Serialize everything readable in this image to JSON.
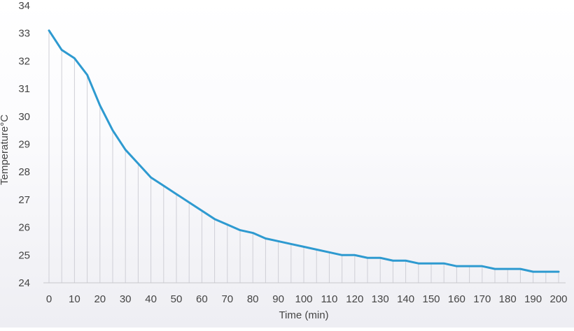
{
  "chart_data": {
    "type": "line",
    "title": "",
    "xlabel": "Time (min)",
    "ylabel": "Temperature°C",
    "xlim": [
      0,
      200
    ],
    "ylim": [
      24,
      34
    ],
    "x_ticks": [
      0,
      10,
      20,
      30,
      40,
      50,
      60,
      70,
      80,
      90,
      100,
      110,
      120,
      130,
      140,
      150,
      160,
      170,
      180,
      190,
      200
    ],
    "y_ticks": [
      24,
      25,
      26,
      27,
      28,
      29,
      30,
      31,
      32,
      33,
      34
    ],
    "drop_lines": true,
    "grid": false,
    "legend": "none",
    "series": [
      {
        "color": "#2e9ad0",
        "x": [
          0,
          5,
          10,
          15,
          20,
          25,
          30,
          35,
          40,
          45,
          50,
          55,
          60,
          65,
          70,
          75,
          80,
          85,
          90,
          95,
          100,
          105,
          110,
          115,
          120,
          125,
          130,
          135,
          140,
          145,
          150,
          155,
          160,
          165,
          170,
          175,
          180,
          185,
          190,
          195,
          200
        ],
        "y": [
          33.1,
          32.4,
          32.1,
          31.5,
          30.4,
          29.5,
          28.8,
          28.3,
          27.8,
          27.5,
          27.2,
          26.9,
          26.6,
          26.3,
          26.1,
          25.9,
          25.8,
          25.6,
          25.5,
          25.4,
          25.3,
          25.2,
          25.1,
          25.0,
          25.0,
          24.9,
          24.9,
          24.8,
          24.8,
          24.7,
          24.7,
          24.7,
          24.6,
          24.6,
          24.6,
          24.5,
          24.5,
          24.5,
          24.4,
          24.4,
          24.4
        ]
      }
    ]
  }
}
